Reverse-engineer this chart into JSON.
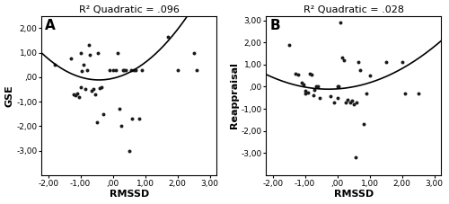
{
  "panel_A": {
    "label": "A",
    "title": "R² Quadratic = .096",
    "xlabel": "RMSSD",
    "ylabel": "GSE",
    "xlim": [
      -2.2,
      3.2
    ],
    "ylim": [
      -4.0,
      2.5
    ],
    "xticks": [
      -2.0,
      -1.0,
      0.0,
      1.0,
      2.0,
      3.0
    ],
    "yticks": [
      -3.0,
      -2.0,
      -1.0,
      0.0,
      1.0,
      2.0
    ],
    "scatter_x": [
      -1.8,
      -1.3,
      -1.2,
      -1.15,
      -1.1,
      -1.05,
      -1.0,
      -1.0,
      -0.95,
      -0.9,
      -0.85,
      -0.8,
      -0.75,
      -0.7,
      -0.65,
      -0.6,
      -0.55,
      -0.5,
      -0.45,
      -0.4,
      -0.35,
      -0.3,
      -0.1,
      0.0,
      0.1,
      0.15,
      0.2,
      0.25,
      0.3,
      0.35,
      0.4,
      0.5,
      0.55,
      0.6,
      0.65,
      0.7,
      0.8,
      0.9,
      1.7,
      2.0,
      2.5,
      2.6
    ],
    "scatter_y": [
      0.5,
      0.75,
      -0.7,
      -0.75,
      -0.65,
      -0.8,
      1.0,
      -0.4,
      0.25,
      0.5,
      -0.5,
      0.3,
      1.3,
      0.9,
      -0.55,
      -0.5,
      -0.7,
      -1.85,
      1.0,
      -0.45,
      -0.4,
      -1.5,
      0.3,
      0.3,
      0.3,
      1.0,
      -1.3,
      -2.0,
      0.3,
      0.3,
      0.3,
      -3.0,
      0.3,
      -1.7,
      0.3,
      0.3,
      -1.7,
      0.3,
      1.65,
      0.3,
      1.0,
      0.3
    ],
    "poly_coeffs": [
      0.35,
      0.3,
      -0.05
    ]
  },
  "panel_B": {
    "label": "B",
    "title": "R² Quadratic = .028",
    "xlabel": "RMSSD",
    "ylabel": "Reappraisal",
    "xlim": [
      -2.2,
      3.2
    ],
    "ylim": [
      -4.0,
      3.2
    ],
    "xticks": [
      -2.0,
      -1.0,
      0.0,
      1.0,
      2.0,
      3.0
    ],
    "yticks": [
      -3.0,
      -2.0,
      -1.0,
      0.0,
      1.0,
      2.0,
      3.0
    ],
    "scatter_x": [
      -1.5,
      -1.3,
      -1.2,
      -1.1,
      -1.05,
      -1.0,
      -1.0,
      -0.9,
      -0.85,
      -0.8,
      -0.75,
      -0.7,
      -0.65,
      -0.6,
      -0.55,
      -0.2,
      -0.1,
      0.0,
      0.0,
      0.05,
      0.1,
      0.15,
      0.2,
      0.25,
      0.3,
      0.4,
      0.45,
      0.5,
      0.55,
      0.6,
      0.65,
      0.7,
      0.8,
      0.9,
      1.0,
      1.5,
      2.0,
      2.1,
      2.5
    ],
    "scatter_y": [
      1.9,
      0.6,
      0.55,
      0.2,
      0.1,
      -0.2,
      -0.3,
      -0.25,
      0.6,
      0.55,
      -0.4,
      -0.15,
      0.0,
      0.0,
      -0.5,
      -0.45,
      -0.7,
      0.0,
      -0.5,
      0.0,
      2.9,
      1.3,
      1.2,
      -0.7,
      -0.6,
      -0.7,
      -0.65,
      -0.8,
      -3.2,
      -0.7,
      1.1,
      0.75,
      -1.7,
      -0.3,
      0.5,
      1.1,
      1.1,
      -0.3,
      -0.3
    ],
    "poly_coeffs": [
      0.18,
      0.1,
      -0.1
    ]
  },
  "line_color": "#000000",
  "scatter_color": "#1a1a1a",
  "scatter_size": 8,
  "background_color": "#ffffff",
  "spine_color": "#000000",
  "tick_labelsize": 6.5,
  "axis_labelsize": 8,
  "title_fontsize": 8,
  "label_fontsize": 11
}
